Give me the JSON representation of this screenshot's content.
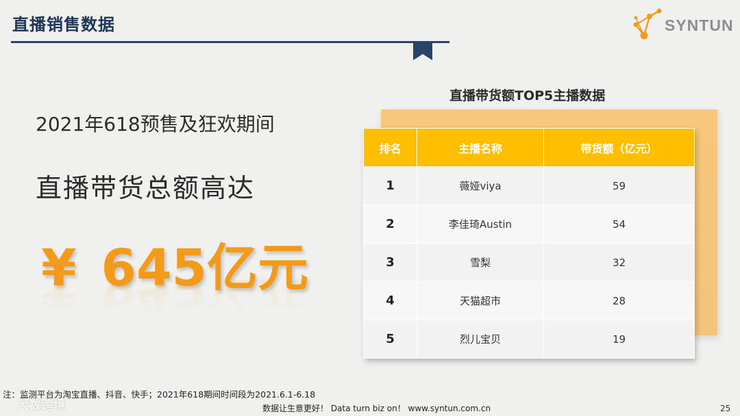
{
  "header": {
    "title": "直播销售数据"
  },
  "logo": {
    "text": "SYNTUN"
  },
  "summary": {
    "period": "2021年618预售及狂欢期间",
    "headline": "直播带货总额高达",
    "currency_symbol": "¥",
    "amount": "645亿元"
  },
  "table": {
    "title": "直播带货额TOP5主播数据",
    "headers": [
      "排名",
      "主播名称",
      "带货额（亿元）"
    ],
    "rows": [
      [
        "1",
        "薇娅viya",
        "59"
      ],
      [
        "2",
        "李佳琦Austin",
        "54"
      ],
      [
        "3",
        "雪梨",
        "32"
      ],
      [
        "4",
        "天猫超市",
        "28"
      ],
      [
        "5",
        "烈儿宝贝",
        "19"
      ]
    ]
  },
  "footer": {
    "note": "注：监测平台为淘宝直播、抖音、快手；2021年618期间时间段为2021.6.1-6.18",
    "tagline": "数据让生意更好！ Data turn biz on！ www.syntun.com.cn",
    "page_number": "25",
    "watermark": "大数跨境"
  },
  "colors": {
    "accent": "#f39a1a",
    "header_navy": "#1e3556",
    "table_header": "#ffbf00"
  }
}
